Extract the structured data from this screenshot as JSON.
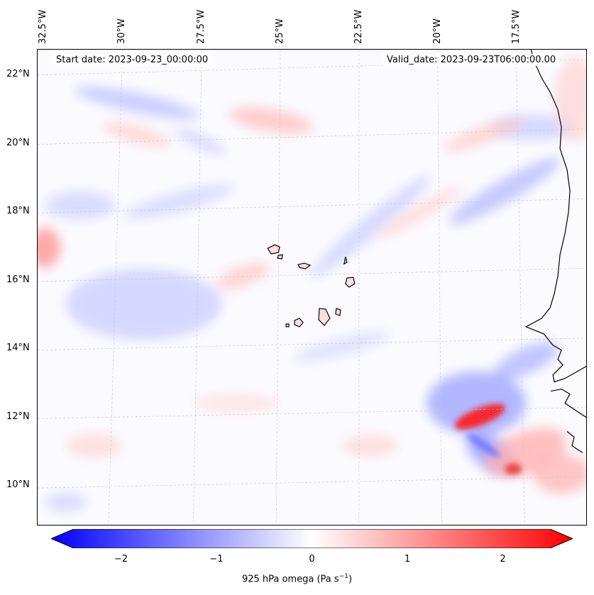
{
  "map": {
    "start_date": "Start date: 2023-09-23_00:00:00",
    "valid_date": "Valid_date: 2023-09-23T06:00:00.00",
    "lon_labels": [
      "32.5°W",
      "30°W",
      "27.5°W",
      "25°W",
      "22.5°W",
      "20°W",
      "17.5°W"
    ],
    "lat_labels": [
      "22°N",
      "20°N",
      "18°N",
      "16°N",
      "14°N",
      "12°N",
      "10°N"
    ],
    "variable": "925 hPa omega (Pa s⁻¹)",
    "features": [
      "Cape Verde islands",
      "West African coastline (Senegal/Gambia/Guinea-Bissau)"
    ]
  },
  "colorbar": {
    "ticks": [
      "−2",
      "−1",
      "0",
      "1",
      "2"
    ],
    "label_text": "925 hPa omega (Pa s",
    "label_exp": "−1",
    "label_close": ")",
    "range": [
      -2.6,
      2.6
    ],
    "cmap": "bwr",
    "extend": "both"
  },
  "colors": {
    "negative": "#0000ff",
    "zero": "#ffffff",
    "positive": "#ff0000"
  }
}
